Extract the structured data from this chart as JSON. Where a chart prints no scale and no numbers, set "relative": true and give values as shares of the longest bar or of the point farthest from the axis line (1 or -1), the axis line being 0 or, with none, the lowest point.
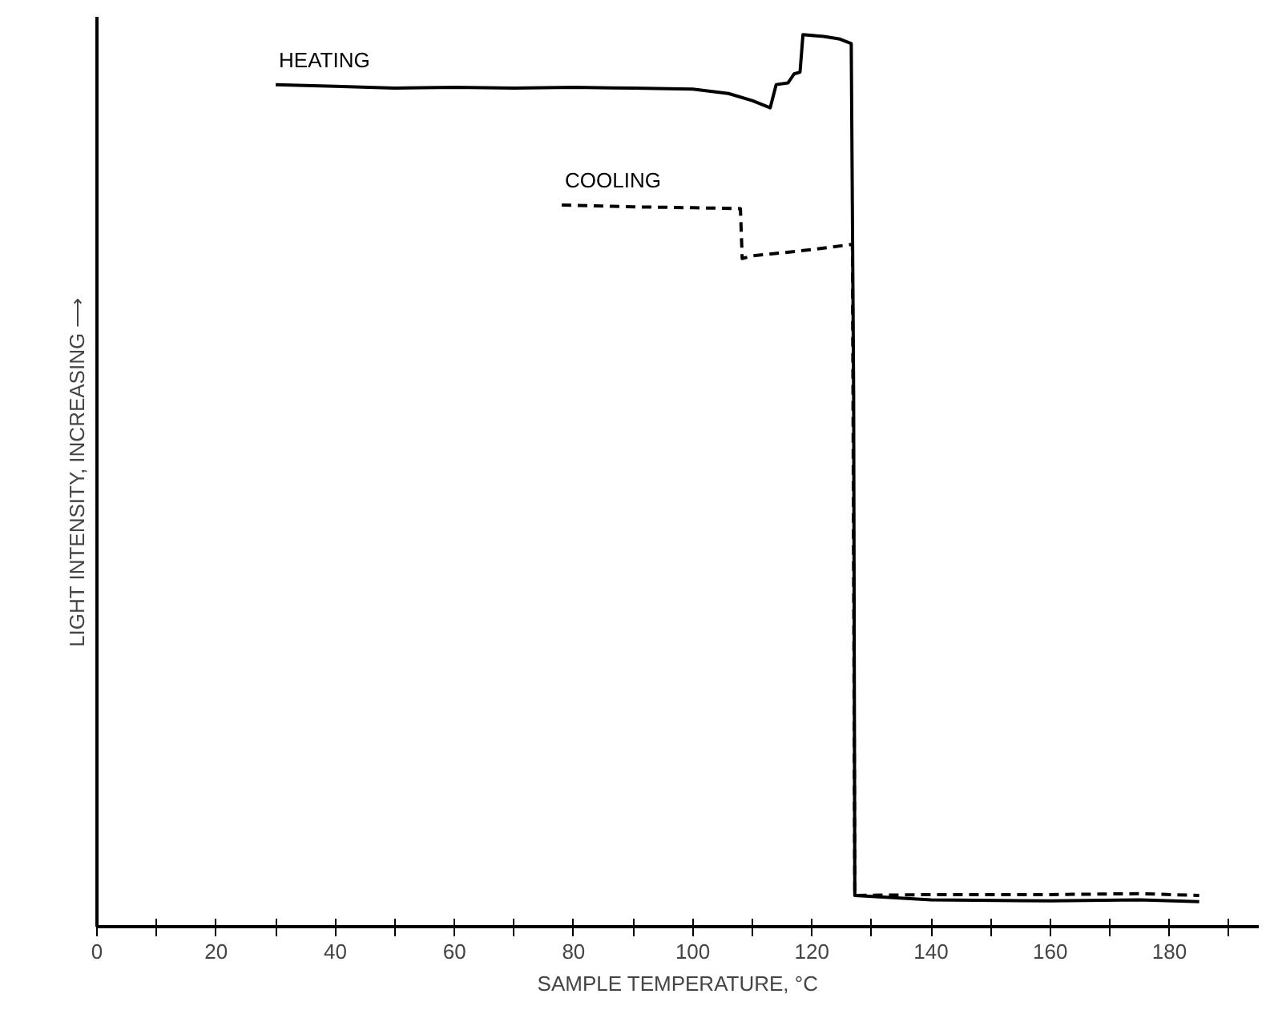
{
  "chart_data": {
    "type": "line",
    "relative": true,
    "xlabel": "SAMPLE TEMPERATURE, °C",
    "ylabel": "LIGHT INTENSITY, INCREASING ⟶",
    "xlim": [
      0,
      195
    ],
    "xticks": [
      0,
      {
        "value": 10,
        "label": null
      },
      20,
      {
        "value": 30,
        "label": null
      },
      40,
      {
        "value": 50,
        "label": null
      },
      60,
      {
        "value": 70,
        "label": null
      },
      80,
      {
        "value": 90,
        "label": null
      },
      100,
      {
        "value": 110,
        "label": null
      },
      120,
      {
        "value": 130,
        "label": null
      },
      140,
      {
        "value": 150,
        "label": null
      },
      160,
      {
        "value": 170,
        "label": null
      },
      180,
      {
        "value": 190,
        "label": null
      }
    ],
    "grid": false,
    "marker": "none",
    "series": [
      {
        "name": "HEATING",
        "color": "#000000",
        "line_style": "solid",
        "x": [
          30,
          40,
          50,
          60,
          70,
          80,
          90,
          100,
          106,
          110,
          113,
          114,
          116,
          117,
          118,
          118.5,
          122,
          124.7,
          126.6,
          127,
          127.2,
          140,
          160,
          175,
          185
        ],
        "values": [
          0.944,
          0.942,
          0.94,
          0.941,
          0.94,
          0.941,
          0.94,
          0.939,
          0.934,
          0.926,
          0.918,
          0.944,
          0.946,
          0.956,
          0.958,
          1.0,
          0.998,
          0.995,
          0.99,
          0.6,
          0.035,
          0.03,
          0.029,
          0.03,
          0.028
        ]
      },
      {
        "name": "COOLING",
        "color": "#000000",
        "line_style": "dashed",
        "x": [
          78,
          90,
          100,
          108,
          108.3,
          110,
          120,
          126.8,
          127,
          127.2,
          140,
          160,
          175,
          185
        ],
        "values": [
          0.809,
          0.807,
          0.806,
          0.805,
          0.749,
          0.752,
          0.759,
          0.765,
          0.4,
          0.035,
          0.036,
          0.036,
          0.037,
          0.035
        ]
      }
    ]
  }
}
